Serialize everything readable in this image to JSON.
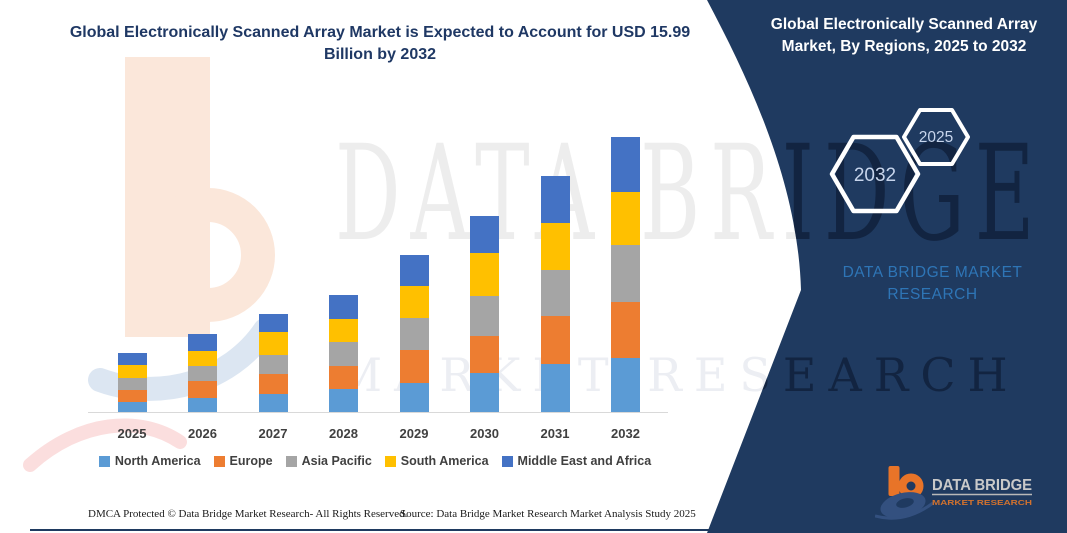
{
  "left_header": {
    "title": "Global Electronically Scanned Array Market is Expected to Account for USD 15.99 Billion by 2032"
  },
  "panel": {
    "title": "Global Electronically Scanned Array Market, By Regions, 2025 to 2032",
    "hexagon_back_label": "2032",
    "hexagon_front_label": "2025",
    "brand_text": "DATA BRIDGE MARKET RESEARCH",
    "bg_color": "#1F3A60",
    "brand_text_color": "#2E75B6",
    "logo": {
      "name": "DATA BRIDGE",
      "subname": "MARKET RESEARCH"
    }
  },
  "watermark": {
    "line1": "DATA BRIDGE",
    "line2": "MARKET RESEARCH"
  },
  "chart_data": {
    "type": "bar",
    "stacked": true,
    "title": "Global Electronically Scanned Array Market is Expected to Account for USD 15.99 Billion by 2032",
    "unit": "USD Billion",
    "categories": [
      "2025",
      "2026",
      "2027",
      "2028",
      "2029",
      "2030",
      "2031",
      "2032"
    ],
    "series": [
      {
        "name": "North America",
        "color": "#5B9BD5",
        "values": [
          0.64,
          0.89,
          1.08,
          1.37,
          1.75,
          2.3,
          2.82,
          3.17
        ]
      },
      {
        "name": "Europe",
        "color": "#ED7D31",
        "values": [
          0.71,
          0.97,
          1.16,
          1.35,
          1.89,
          2.16,
          2.81,
          3.24
        ]
      },
      {
        "name": "Asia Pacific",
        "color": "#A5A5A5",
        "values": [
          0.68,
          0.87,
          1.12,
          1.41,
          1.87,
          2.31,
          2.64,
          3.32
        ]
      },
      {
        "name": "South America",
        "color": "#FFC000",
        "values": [
          0.73,
          0.87,
          1.35,
          1.3,
          1.83,
          2.51,
          2.7,
          3.03
        ]
      },
      {
        "name": "Middle East and Africa",
        "color": "#4472C4",
        "values": [
          0.71,
          0.98,
          1.02,
          1.41,
          1.79,
          2.12,
          2.75,
          3.23
        ]
      }
    ],
    "totals": [
      3.47,
      4.58,
      5.73,
      6.84,
      9.13,
      11.4,
      13.72,
      15.99
    ],
    "ylim": [
      0,
      16
    ],
    "y_axis_visible": false,
    "gridlines": false,
    "legend_position": "bottom"
  },
  "footer": {
    "left": "DMCA Protected © Data Bridge Market Research-  All Rights Reserved.",
    "source": "Source: Data Bridge Market Research  Market Analysis Study 2025"
  }
}
